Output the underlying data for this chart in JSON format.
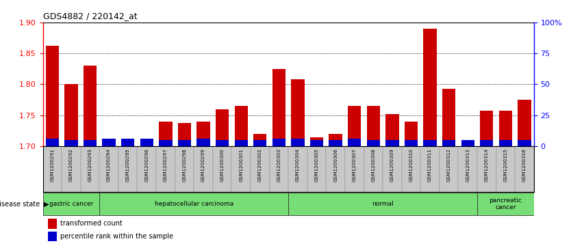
{
  "title": "GDS4882 / 220142_at",
  "samples": [
    "GSM1200291",
    "GSM1200292",
    "GSM1200293",
    "GSM1200294",
    "GSM1200295",
    "GSM1200296",
    "GSM1200297",
    "GSM1200298",
    "GSM1200299",
    "GSM1200300",
    "GSM1200301",
    "GSM1200302",
    "GSM1200303",
    "GSM1200304",
    "GSM1200305",
    "GSM1200306",
    "GSM1200307",
    "GSM1200308",
    "GSM1200309",
    "GSM1200310",
    "GSM1200311",
    "GSM1200312",
    "GSM1200313",
    "GSM1200314",
    "GSM1200315",
    "GSM1200316"
  ],
  "transformed_count": [
    1.862,
    1.8,
    1.83,
    1.7,
    1.7,
    1.7,
    1.74,
    1.738,
    1.74,
    1.76,
    1.765,
    1.72,
    1.825,
    1.808,
    1.715,
    1.72,
    1.765,
    1.765,
    1.752,
    1.74,
    1.89,
    1.793,
    1.7,
    1.758,
    1.758,
    1.775
  ],
  "percentile_rank": [
    6,
    5,
    5,
    6,
    6,
    6,
    5,
    5,
    6,
    5,
    5,
    5,
    6,
    6,
    5,
    5,
    6,
    5,
    5,
    5,
    5,
    5,
    5,
    5,
    5,
    5
  ],
  "ylim_left": [
    1.7,
    1.9
  ],
  "ylim_right": [
    0,
    100
  ],
  "yticks_left": [
    1.7,
    1.75,
    1.8,
    1.85,
    1.9
  ],
  "yticks_right": [
    0,
    25,
    50,
    75,
    100
  ],
  "bar_color_red": "#CC0000",
  "bar_color_blue": "#0000CC",
  "cell_bg": "#C8C8C8",
  "plot_bg": "#FFFFFF",
  "legend_red": "transformed count",
  "legend_blue": "percentile rank within the sample",
  "groups": [
    {
      "label": "gastric cancer",
      "start": 0,
      "end": 2
    },
    {
      "label": "hepatocellular carcinoma",
      "start": 3,
      "end": 12
    },
    {
      "label": "normal",
      "start": 13,
      "end": 22
    },
    {
      "label": "pancreatic\ncancer",
      "start": 23,
      "end": 25
    }
  ],
  "green_color": "#77DD77",
  "group_sep": [
    2.5,
    12.5,
    22.5
  ]
}
